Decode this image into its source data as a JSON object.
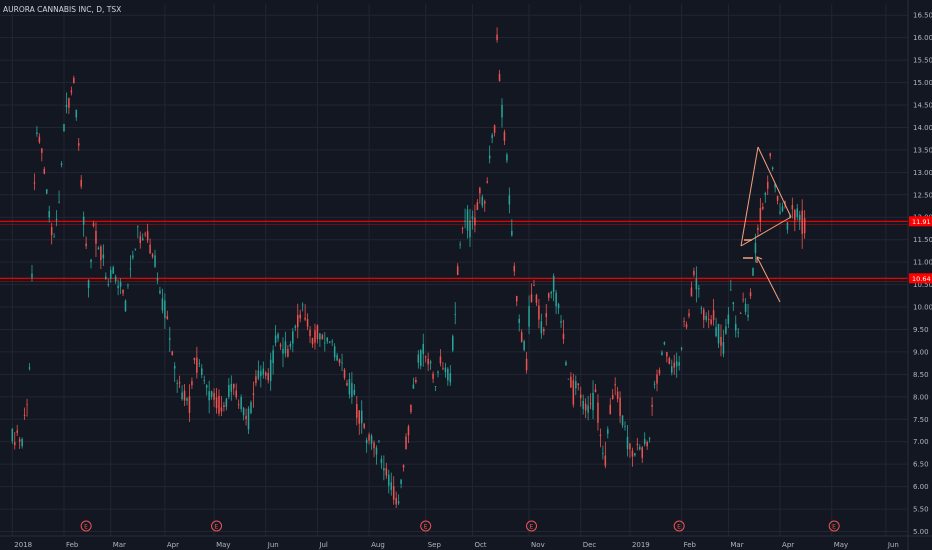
{
  "header": {
    "title": "AURORA CANNABIS INC, D, TSX"
  },
  "colors": {
    "up": "#26a69a",
    "down": "#ef5350",
    "background": "#131722",
    "grid": "#232632",
    "line": "#ff0000",
    "drawing": "#f5a07a"
  },
  "chart_data": {
    "type": "candlestick",
    "y_ticks": [
      "5.00",
      "5.50",
      "6.00",
      "6.50",
      "7.00",
      "7.50",
      "8.00",
      "8.50",
      "9.00",
      "9.50",
      "10.00",
      "10.50",
      "11.00",
      "11.50",
      "12.00",
      "12.50",
      "13.00",
      "13.50",
      "14.00",
      "14.50",
      "15.00",
      "15.50",
      "16.00",
      "16.50"
    ],
    "ylim": [
      4.9,
      16.75
    ],
    "x_ticks": [
      {
        "label": "2018",
        "x": 0
      },
      {
        "label": "Feb",
        "x": 21
      },
      {
        "label": "Mar",
        "x": 40
      },
      {
        "label": "Apr",
        "x": 62
      },
      {
        "label": "May",
        "x": 82
      },
      {
        "label": "Jun",
        "x": 103
      },
      {
        "label": "Jul",
        "x": 124
      },
      {
        "label": "Aug",
        "x": 145
      },
      {
        "label": "Sep",
        "x": 168
      },
      {
        "label": "Oct",
        "x": 187
      },
      {
        "label": "Nov",
        "x": 210
      },
      {
        "label": "Dec",
        "x": 231
      },
      {
        "label": "2019",
        "x": 251
      },
      {
        "label": "Feb",
        "x": 272
      },
      {
        "label": "Mar",
        "x": 291
      },
      {
        "label": "Apr",
        "x": 312
      },
      {
        "label": "May",
        "x": 333
      },
      {
        "label": "Jun",
        "x": 355
      }
    ],
    "xlim": [
      -5,
      364
    ],
    "price_lines": [
      {
        "value": 11.91,
        "label": "11.91"
      },
      {
        "value": 10.64,
        "label": "10.64"
      }
    ],
    "earnings_markers": [
      {
        "label": "E",
        "x": 30
      },
      {
        "label": "E",
        "x": 83
      },
      {
        "label": "E",
        "x": 168
      },
      {
        "label": "E",
        "x": 211
      },
      {
        "label": "E",
        "x": 271
      },
      {
        "label": "E",
        "x": 334
      }
    ],
    "anchors": [
      [
        0,
        7.1
      ],
      [
        4,
        7.0
      ],
      [
        7,
        8.6
      ],
      [
        9,
        12.6
      ],
      [
        10,
        14.0
      ],
      [
        13,
        13.0
      ],
      [
        15,
        12.0
      ],
      [
        17,
        11.5
      ],
      [
        19,
        12.3
      ],
      [
        21,
        14.0
      ],
      [
        23,
        14.5
      ],
      [
        25,
        15.1
      ],
      [
        27,
        13.5
      ],
      [
        29,
        12.0
      ],
      [
        31,
        10.5
      ],
      [
        33,
        11.8
      ],
      [
        35,
        11.4
      ],
      [
        37,
        11.0
      ],
      [
        39,
        10.4
      ],
      [
        41,
        10.8
      ],
      [
        43,
        10.5
      ],
      [
        46,
        10.2
      ],
      [
        48,
        10.8
      ],
      [
        51,
        11.5
      ],
      [
        55,
        11.6
      ],
      [
        58,
        11.0
      ],
      [
        60,
        10.3
      ],
      [
        63,
        9.8
      ],
      [
        65,
        9.0
      ],
      [
        68,
        8.2
      ],
      [
        70,
        8.1
      ],
      [
        72,
        7.8
      ],
      [
        74,
        8.8
      ],
      [
        76,
        8.7
      ],
      [
        78,
        8.3
      ],
      [
        80,
        8.0
      ],
      [
        82,
        8.1
      ],
      [
        84,
        7.8
      ],
      [
        87,
        7.9
      ],
      [
        89,
        8.2
      ],
      [
        92,
        8.0
      ],
      [
        94,
        7.7
      ],
      [
        96,
        7.5
      ],
      [
        99,
        8.3
      ],
      [
        102,
        8.5
      ],
      [
        105,
        8.6
      ],
      [
        107,
        9.3
      ],
      [
        110,
        9.1
      ],
      [
        112,
        9.0
      ],
      [
        114,
        9.3
      ],
      [
        116,
        9.7
      ],
      [
        118,
        10.0
      ],
      [
        120,
        9.6
      ],
      [
        122,
        9.3
      ],
      [
        124,
        9.4
      ],
      [
        126,
        9.4
      ],
      [
        129,
        9.2
      ],
      [
        131,
        9.0
      ],
      [
        134,
        8.6
      ],
      [
        136,
        8.3
      ],
      [
        139,
        8.0
      ],
      [
        141,
        7.6
      ],
      [
        144,
        7.2
      ],
      [
        146,
        7.0
      ],
      [
        149,
        6.8
      ],
      [
        152,
        6.3
      ],
      [
        155,
        5.8
      ],
      [
        157,
        5.6
      ],
      [
        159,
        6.5
      ],
      [
        161,
        7.3
      ],
      [
        163,
        8.2
      ],
      [
        165,
        8.7
      ],
      [
        168,
        9.0
      ],
      [
        170,
        8.7
      ],
      [
        172,
        8.3
      ],
      [
        174,
        8.7
      ],
      [
        176,
        8.6
      ],
      [
        178,
        8.4
      ],
      [
        180,
        10.0
      ],
      [
        182,
        11.5
      ],
      [
        184,
        12.0
      ],
      [
        186,
        11.8
      ],
      [
        188,
        12.0
      ],
      [
        190,
        12.5
      ],
      [
        192,
        12.2
      ],
      [
        194,
        13.5
      ],
      [
        196,
        14.0
      ],
      [
        197,
        16.0
      ],
      [
        199,
        14.3
      ],
      [
        201,
        13.3
      ],
      [
        203,
        11.5
      ],
      [
        205,
        10.2
      ],
      [
        207,
        9.3
      ],
      [
        209,
        8.8
      ],
      [
        210,
        9.8
      ],
      [
        212,
        10.4
      ],
      [
        214,
        9.8
      ],
      [
        216,
        9.3
      ],
      [
        218,
        10.3
      ],
      [
        220,
        10.5
      ],
      [
        222,
        10.0
      ],
      [
        224,
        9.2
      ],
      [
        226,
        8.5
      ],
      [
        228,
        8.1
      ],
      [
        230,
        8.3
      ],
      [
        232,
        7.9
      ],
      [
        235,
        7.7
      ],
      [
        237,
        8.1
      ],
      [
        239,
        7.2
      ],
      [
        241,
        6.7
      ],
      [
        243,
        7.7
      ],
      [
        245,
        8.4
      ],
      [
        247,
        7.7
      ],
      [
        249,
        7.3
      ],
      [
        251,
        6.8
      ],
      [
        254,
        6.9
      ],
      [
        256,
        6.8
      ],
      [
        259,
        7.1
      ],
      [
        261,
        8.2
      ],
      [
        263,
        8.6
      ],
      [
        265,
        9.2
      ],
      [
        267,
        8.8
      ],
      [
        269,
        8.5
      ],
      [
        271,
        8.8
      ],
      [
        273,
        9.5
      ],
      [
        275,
        9.8
      ],
      [
        277,
        10.7
      ],
      [
        279,
        10.3
      ],
      [
        281,
        9.9
      ],
      [
        283,
        9.6
      ],
      [
        285,
        9.7
      ],
      [
        287,
        9.4
      ],
      [
        289,
        9.2
      ],
      [
        291,
        9.7
      ],
      [
        292,
        10.2
      ],
      [
        294,
        9.6
      ],
      [
        295,
        9.4
      ],
      [
        297,
        10.2
      ],
      [
        299,
        9.7
      ],
      [
        301,
        10.8
      ],
      [
        302,
        11.4
      ],
      [
        303,
        11.6
      ],
      [
        305,
        12.4
      ],
      [
        307,
        12.6
      ],
      [
        308,
        13.4
      ],
      [
        310,
        12.7
      ],
      [
        312,
        12.1
      ],
      [
        314,
        12.3
      ],
      [
        315,
        11.8
      ],
      [
        317,
        12.2
      ],
      [
        319,
        12.1
      ],
      [
        321,
        11.9
      ],
      [
        322,
        11.9
      ]
    ]
  }
}
